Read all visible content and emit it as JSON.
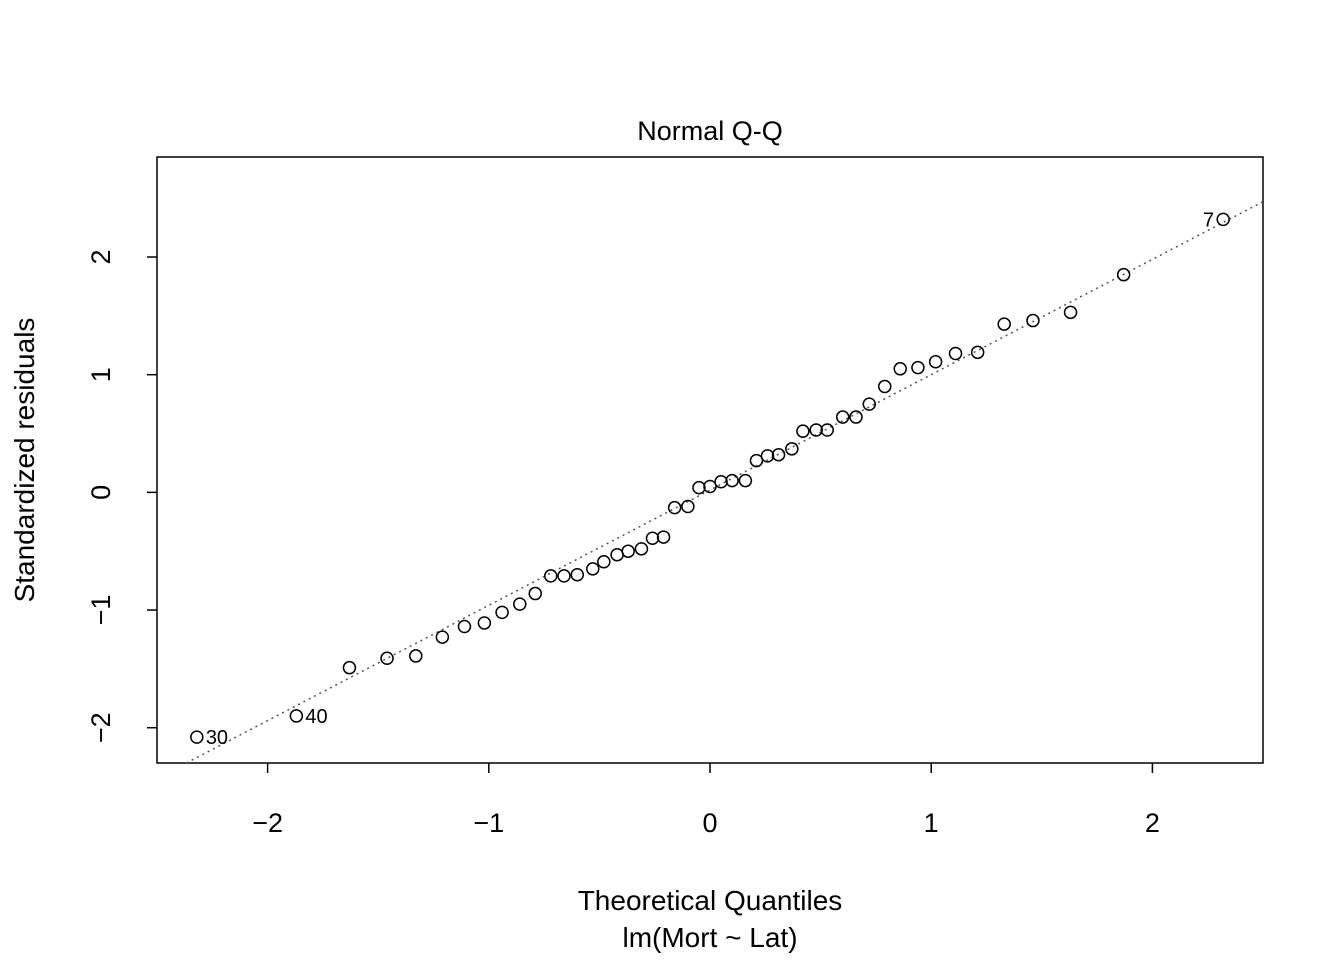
{
  "chart_data": {
    "type": "scatter",
    "title": "Normal Q-Q",
    "xlabel": "Theoretical Quantiles",
    "subtitle": "lm(Mort ~ Lat)",
    "ylabel": "Standardized residuals",
    "xlim": [
      -2.5,
      2.5
    ],
    "ylim": [
      -2.3,
      2.85
    ],
    "xticks": [
      -2,
      -1,
      0,
      1,
      2
    ],
    "yticks": [
      -2,
      -1,
      0,
      1,
      2
    ],
    "reference_line": {
      "style": "dotted",
      "intercept": 0.02,
      "slope": 0.98
    },
    "points": [
      {
        "x": -2.32,
        "y": -2.08,
        "label": "30"
      },
      {
        "x": -1.87,
        "y": -1.9,
        "label": "40"
      },
      {
        "x": -1.63,
        "y": -1.49
      },
      {
        "x": -1.46,
        "y": -1.41
      },
      {
        "x": -1.33,
        "y": -1.39
      },
      {
        "x": -1.21,
        "y": -1.23
      },
      {
        "x": -1.11,
        "y": -1.14
      },
      {
        "x": -1.02,
        "y": -1.11
      },
      {
        "x": -0.94,
        "y": -1.02
      },
      {
        "x": -0.86,
        "y": -0.95
      },
      {
        "x": -0.79,
        "y": -0.86
      },
      {
        "x": -0.72,
        "y": -0.71
      },
      {
        "x": -0.66,
        "y": -0.71
      },
      {
        "x": -0.6,
        "y": -0.7
      },
      {
        "x": -0.53,
        "y": -0.65
      },
      {
        "x": -0.48,
        "y": -0.59
      },
      {
        "x": -0.42,
        "y": -0.53
      },
      {
        "x": -0.37,
        "y": -0.5
      },
      {
        "x": -0.31,
        "y": -0.48
      },
      {
        "x": -0.26,
        "y": -0.39
      },
      {
        "x": -0.21,
        "y": -0.38
      },
      {
        "x": -0.16,
        "y": -0.13
      },
      {
        "x": -0.1,
        "y": -0.12
      },
      {
        "x": -0.05,
        "y": 0.04
      },
      {
        "x": 0.0,
        "y": 0.05
      },
      {
        "x": 0.05,
        "y": 0.09
      },
      {
        "x": 0.1,
        "y": 0.1
      },
      {
        "x": 0.16,
        "y": 0.1
      },
      {
        "x": 0.21,
        "y": 0.27
      },
      {
        "x": 0.26,
        "y": 0.31
      },
      {
        "x": 0.31,
        "y": 0.32
      },
      {
        "x": 0.37,
        "y": 0.37
      },
      {
        "x": 0.42,
        "y": 0.52
      },
      {
        "x": 0.48,
        "y": 0.53
      },
      {
        "x": 0.53,
        "y": 0.53
      },
      {
        "x": 0.6,
        "y": 0.64
      },
      {
        "x": 0.66,
        "y": 0.64
      },
      {
        "x": 0.72,
        "y": 0.75
      },
      {
        "x": 0.79,
        "y": 0.9
      },
      {
        "x": 0.86,
        "y": 1.05
      },
      {
        "x": 0.94,
        "y": 1.06
      },
      {
        "x": 1.02,
        "y": 1.11
      },
      {
        "x": 1.11,
        "y": 1.18
      },
      {
        "x": 1.21,
        "y": 1.19
      },
      {
        "x": 1.33,
        "y": 1.43
      },
      {
        "x": 1.46,
        "y": 1.46
      },
      {
        "x": 1.63,
        "y": 1.53
      },
      {
        "x": 1.87,
        "y": 1.85
      },
      {
        "x": 2.32,
        "y": 2.32,
        "label": "7"
      }
    ]
  }
}
